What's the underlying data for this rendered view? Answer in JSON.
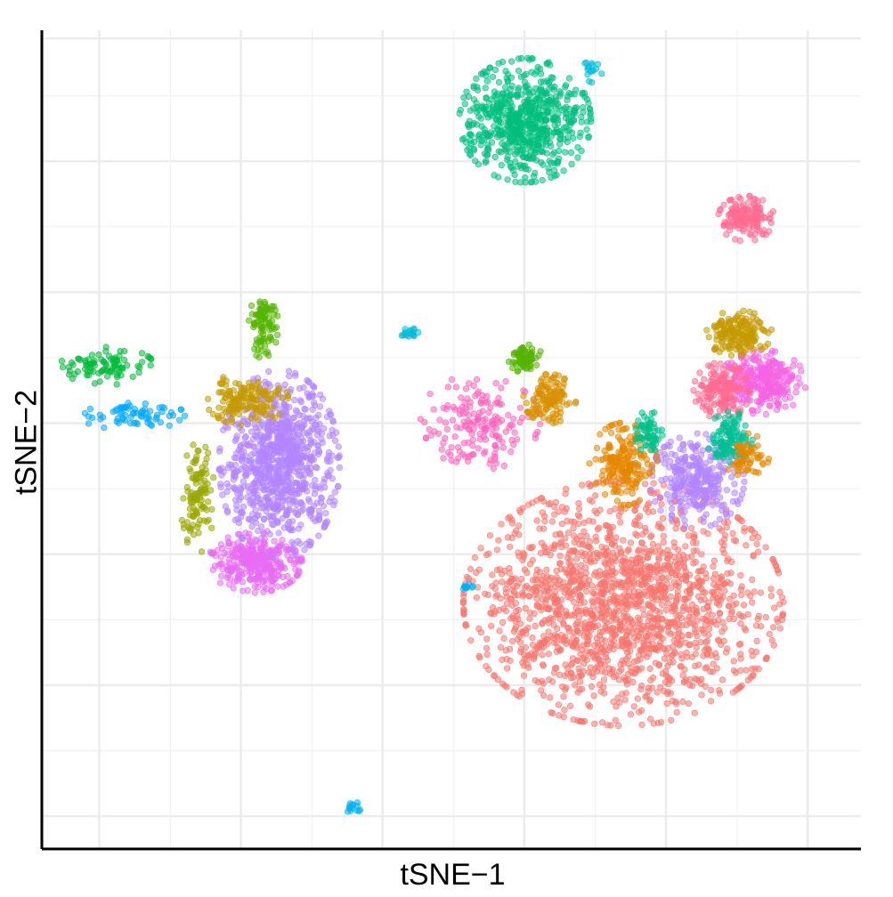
{
  "chart_data": {
    "type": "scatter",
    "xlabel": "tSNE−1",
    "ylabel": "tSNE−2",
    "grid": true,
    "legend": "none",
    "tick_labels": "none",
    "xlim": [
      0,
      1
    ],
    "ylim": [
      0,
      1
    ],
    "point_alpha": 0.55,
    "clusters": [
      {
        "color": "#F8766D",
        "center": [
          0.71,
          0.3
        ],
        "spread": [
          0.085,
          0.065
        ],
        "n": 1700
      },
      {
        "color": "#00BF7D",
        "center": [
          0.59,
          0.89
        ],
        "spread": [
          0.035,
          0.033
        ],
        "n": 650
      },
      {
        "color": "#B385FF",
        "center": [
          0.29,
          0.47
        ],
        "spread": [
          0.032,
          0.05
        ],
        "n": 900
      },
      {
        "color": "#B385FF",
        "center": [
          0.8,
          0.45
        ],
        "spread": [
          0.025,
          0.025
        ],
        "n": 300
      },
      {
        "color": "#E76BF3",
        "center": [
          0.26,
          0.35
        ],
        "spread": [
          0.025,
          0.016
        ],
        "n": 300
      },
      {
        "color": "#F564E3",
        "center": [
          0.88,
          0.57
        ],
        "spread": [
          0.023,
          0.017
        ],
        "n": 280
      },
      {
        "color": "#FF6C91",
        "center": [
          0.86,
          0.77
        ],
        "spread": [
          0.015,
          0.012
        ],
        "n": 150
      },
      {
        "color": "#FF62BC",
        "center": [
          0.53,
          0.52
        ],
        "spread": [
          0.035,
          0.025
        ],
        "n": 170
      },
      {
        "color": "#FF6C91",
        "center": [
          0.83,
          0.56
        ],
        "spread": [
          0.015,
          0.015
        ],
        "n": 160
      },
      {
        "color": "#C49A00",
        "center": [
          0.85,
          0.63
        ],
        "spread": [
          0.018,
          0.012
        ],
        "n": 170
      },
      {
        "color": "#C49A00",
        "center": [
          0.25,
          0.55
        ],
        "spread": [
          0.022,
          0.014
        ],
        "n": 150
      },
      {
        "color": "#99A800",
        "center": [
          0.19,
          0.43
        ],
        "spread": [
          0.009,
          0.03
        ],
        "n": 110
      },
      {
        "color": "#53B400",
        "center": [
          0.27,
          0.64
        ],
        "spread": [
          0.008,
          0.018
        ],
        "n": 90
      },
      {
        "color": "#00A9FF",
        "center": [
          0.11,
          0.53
        ],
        "spread": [
          0.028,
          0.008
        ],
        "n": 70
      },
      {
        "color": "#00C094",
        "center": [
          0.84,
          0.5
        ],
        "spread": [
          0.012,
          0.015
        ],
        "n": 120
      },
      {
        "color": "#E58700",
        "center": [
          0.71,
          0.47
        ],
        "spread": [
          0.018,
          0.022
        ],
        "n": 200
      },
      {
        "color": "#E58700",
        "center": [
          0.86,
          0.48
        ],
        "spread": [
          0.012,
          0.012
        ],
        "n": 60
      },
      {
        "color": "#D89000",
        "center": [
          0.62,
          0.55
        ],
        "spread": [
          0.014,
          0.013
        ],
        "n": 120
      },
      {
        "color": "#53B400",
        "center": [
          0.59,
          0.6
        ],
        "spread": [
          0.009,
          0.008
        ],
        "n": 70
      },
      {
        "color": "#00C08B",
        "center": [
          0.74,
          0.51
        ],
        "spread": [
          0.008,
          0.011
        ],
        "n": 60
      },
      {
        "color": "#00BCD8",
        "center": [
          0.45,
          0.63
        ],
        "spread": [
          0.005,
          0.003
        ],
        "n": 18
      },
      {
        "color": "#00B0F6",
        "center": [
          0.38,
          0.05
        ],
        "spread": [
          0.004,
          0.004
        ],
        "n": 14
      },
      {
        "color": "#00B0F6",
        "center": [
          0.52,
          0.32
        ],
        "spread": [
          0.004,
          0.002
        ],
        "n": 10
      },
      {
        "color": "#00BCD8",
        "center": [
          0.67,
          0.95
        ],
        "spread": [
          0.006,
          0.006
        ],
        "n": 16
      },
      {
        "color": "#00BA38",
        "center": [
          0.08,
          0.59
        ],
        "spread": [
          0.025,
          0.01
        ],
        "n": 90
      }
    ]
  }
}
